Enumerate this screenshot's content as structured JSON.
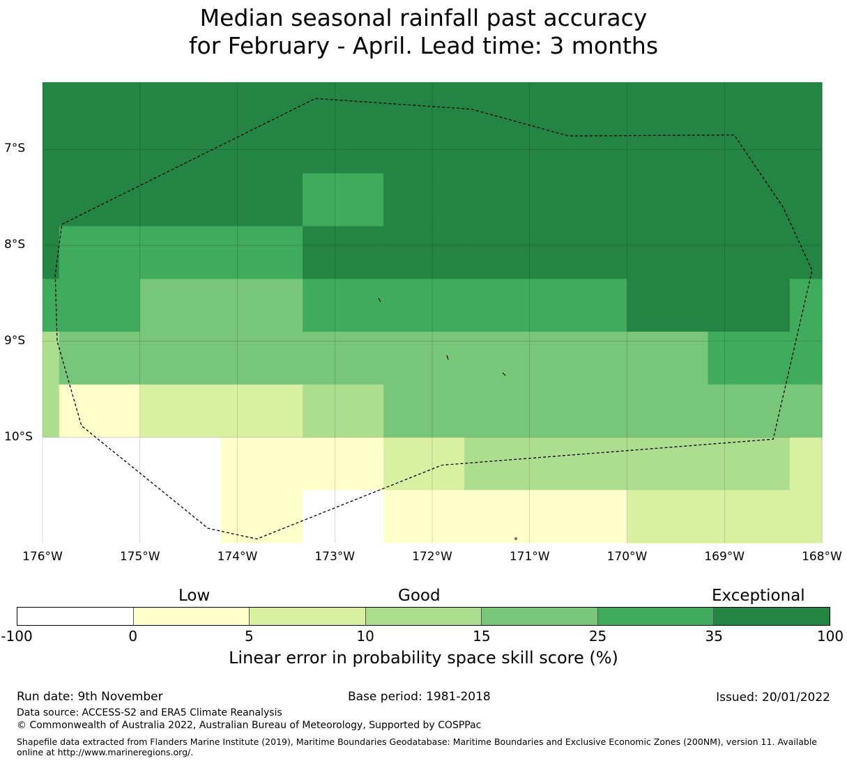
{
  "title": {
    "line1": "Median seasonal rainfall past accuracy",
    "line2": "for February - April. Lead time: 3 months"
  },
  "map": {
    "lon_range": [
      -176,
      -168
    ],
    "lat_range": [
      -11.1,
      -6.3
    ],
    "x_ticks": [
      {
        "lon": -176,
        "label": "176°W"
      },
      {
        "lon": -175,
        "label": "175°W"
      },
      {
        "lon": -174,
        "label": "174°W"
      },
      {
        "lon": -173,
        "label": "173°W"
      },
      {
        "lon": -172,
        "label": "172°W"
      },
      {
        "lon": -171,
        "label": "171°W"
      },
      {
        "lon": -170,
        "label": "170°W"
      },
      {
        "lon": -169,
        "label": "169°W"
      },
      {
        "lon": -168,
        "label": "168°W"
      }
    ],
    "y_ticks": [
      {
        "lat": -7,
        "label": "7°S"
      },
      {
        "lat": -8,
        "label": "8°S"
      },
      {
        "lat": -9,
        "label": "9°S"
      },
      {
        "lat": -10,
        "label": "10°S"
      }
    ],
    "grid_lon_edges": [
      -176,
      -175.83,
      -175,
      -174.17,
      -173.33,
      -172.5,
      -171.67,
      -170.83,
      -170,
      -169.17,
      -168.33,
      -168
    ],
    "grid_lat_edges": [
      -6.3,
      -7.25,
      -7.8,
      -8.35,
      -8.9,
      -9.45,
      -10.0,
      -10.55,
      -11.1
    ],
    "grid_classes": [
      [
        6,
        6,
        6,
        6,
        6,
        6,
        6,
        6,
        6,
        6,
        6
      ],
      [
        6,
        6,
        6,
        6,
        5,
        6,
        6,
        6,
        6,
        6,
        6
      ],
      [
        6,
        5,
        5,
        5,
        6,
        6,
        6,
        6,
        6,
        6,
        6
      ],
      [
        5,
        5,
        4,
        4,
        5,
        5,
        5,
        5,
        6,
        6,
        5
      ],
      [
        3,
        4,
        4,
        4,
        4,
        4,
        4,
        4,
        4,
        5,
        5
      ],
      [
        3,
        1,
        2,
        2,
        3,
        4,
        4,
        4,
        4,
        4,
        4
      ],
      [
        0,
        0,
        0,
        1,
        1,
        2,
        3,
        3,
        3,
        3,
        2
      ],
      [
        0,
        0,
        0,
        1,
        0,
        1,
        1,
        1,
        2,
        2,
        2
      ]
    ],
    "eez_boundary": [
      [
        -175.8,
        -7.78
      ],
      [
        -173.2,
        -6.47
      ],
      [
        -171.6,
        -6.58
      ],
      [
        -170.6,
        -6.86
      ],
      [
        -168.9,
        -6.85
      ],
      [
        -168.4,
        -7.6
      ],
      [
        -168.1,
        -8.26
      ],
      [
        -168.5,
        -10.02
      ],
      [
        -171.9,
        -10.29
      ],
      [
        -173.8,
        -11.06
      ],
      [
        -174.3,
        -10.95
      ],
      [
        -175.6,
        -9.88
      ],
      [
        -175.85,
        -9.0
      ],
      [
        -175.87,
        -8.3
      ],
      [
        -175.8,
        -7.78
      ]
    ]
  },
  "legend": {
    "category_low": "Low",
    "category_good": "Good",
    "category_exceptional": "Exceptional",
    "colors": [
      "#ffffff",
      "#ffffcc",
      "#d9f0a3",
      "#addd8e",
      "#78c679",
      "#41ab5d",
      "#238443"
    ],
    "ticks": [
      "-100",
      "0",
      "5",
      "10",
      "15",
      "25",
      "35",
      "100"
    ],
    "label": "Linear error in probability space skill score (%)"
  },
  "footer": {
    "run_date": "Run date: 9th November",
    "base_period": "Base period: 1981-2018",
    "issued": "Issued: 20/01/2022",
    "data_source": "Data source: ACCESS-S2 and ERA5 Climate Reanalysis",
    "copyright": "© Commonwealth of Australia 2022, Australian Bureau of Meteorology, Supported by COSPPac",
    "shapefile": "Shapefile data extracted from Flanders Marine Institute (2019), Maritime Boundaries Geodatabase: Maritime Boundaries and Exclusive Economic Zones (200NM), version 11. Available online at http://www.marineregions.org/."
  }
}
